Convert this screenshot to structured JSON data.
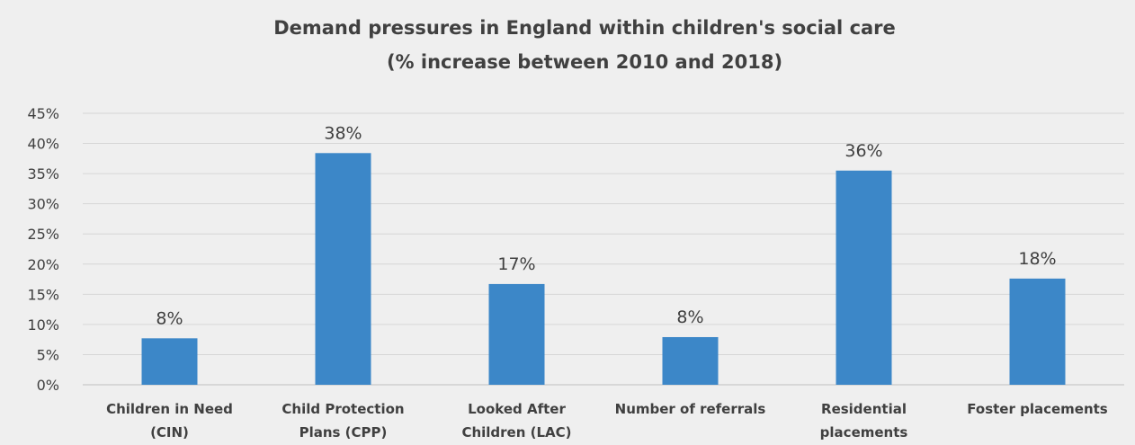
{
  "chart_data": {
    "type": "bar",
    "title": "Demand pressures in England within children's social care",
    "subtitle": "(% increase between 2010 and 2018)",
    "xlabel": "",
    "ylabel": "",
    "ylim": [
      0,
      45
    ],
    "yticks": [
      "0%",
      "5%",
      "10%",
      "15%",
      "20%",
      "25%",
      "30%",
      "35%",
      "40%",
      "45%"
    ],
    "grid": true,
    "legend": "none",
    "bar_color": "#3c87c8",
    "categories": [
      [
        "Children in Need",
        "(CIN)"
      ],
      [
        "Child Protection",
        "Plans (CPP)"
      ],
      [
        "Looked After",
        "Children (LAC)"
      ],
      [
        "Number of referrals"
      ],
      [
        "Residential",
        "placements"
      ],
      [
        "Foster placements"
      ]
    ],
    "values": [
      7.7,
      38.4,
      16.7,
      7.9,
      35.5,
      17.6
    ],
    "data_labels": [
      "8%",
      "38%",
      "17%",
      "8%",
      "36%",
      "18%"
    ]
  }
}
